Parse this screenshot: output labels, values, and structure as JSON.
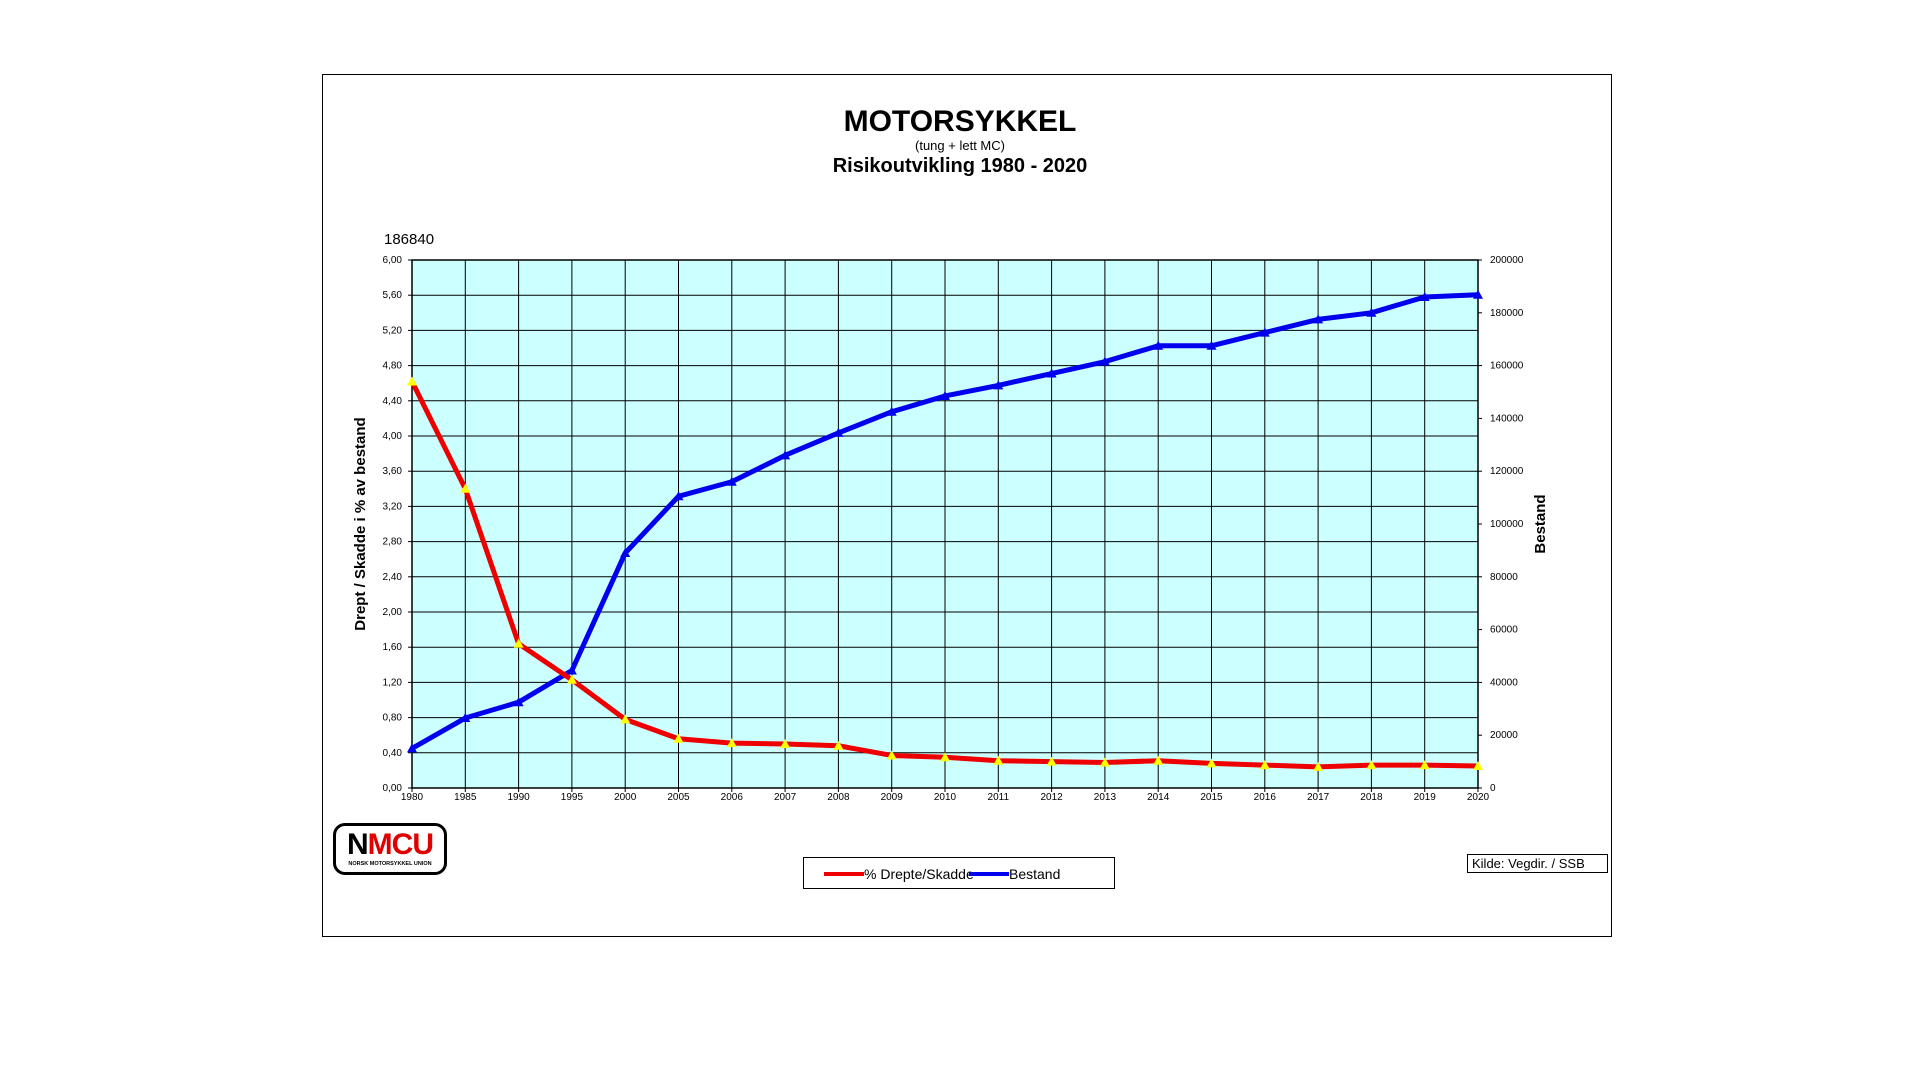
{
  "title": "MOTORSYKKEL",
  "subtitle": "(tung + lett MC)",
  "subtitle2": "Risikoutvikling 1980 - 2020",
  "logo": {
    "text_black": "N",
    "text_red": "MCU",
    "tagline": "NORSK MOTORSYKKEL UNION"
  },
  "source": "Kilde: Vegdir. / SSB",
  "colors": {
    "plot_bg": "#ccffff",
    "series1": "#ee0000",
    "series2": "#0000ee",
    "marker1": "#ffff00"
  },
  "chart_data": {
    "type": "line",
    "annotation": "186840",
    "categories": [
      "1980",
      "1985",
      "1990",
      "1995",
      "2000",
      "2005",
      "2006",
      "2007",
      "2008",
      "2009",
      "2010",
      "2011",
      "2012",
      "2013",
      "2014",
      "2015",
      "2016",
      "2017",
      "2018",
      "2019",
      "2020"
    ],
    "ylabel_left": "Drept / Skadde i % av bestand",
    "ylabel_right": "Bestand",
    "ylim_left": [
      0,
      6
    ],
    "ylim_right": [
      0,
      200000
    ],
    "yticks_left": [
      "0,00",
      "0,40",
      "0,80",
      "1,20",
      "1,60",
      "2,00",
      "2,40",
      "2,80",
      "3,20",
      "3,60",
      "4,00",
      "4,40",
      "4,80",
      "5,20",
      "5,60",
      "6,00"
    ],
    "yticks_right": [
      "0",
      "20000",
      "40000",
      "60000",
      "80000",
      "100000",
      "120000",
      "140000",
      "160000",
      "180000",
      "200000"
    ],
    "grid": true,
    "legend_position": "bottom",
    "series": [
      {
        "name": "% Drepte/Skadde",
        "axis": "left",
        "values": [
          4.62,
          3.4,
          1.64,
          1.23,
          0.78,
          0.56,
          0.51,
          0.5,
          0.48,
          0.37,
          0.35,
          0.31,
          0.3,
          0.29,
          0.31,
          0.28,
          0.26,
          0.24,
          0.26,
          0.26,
          0.25
        ]
      },
      {
        "name": "Bestand",
        "axis": "right",
        "values": [
          15000,
          26500,
          32500,
          44500,
          89000,
          110500,
          116000,
          126000,
          134500,
          142500,
          148500,
          152500,
          157000,
          161500,
          167500,
          167500,
          172500,
          177500,
          180000,
          186000,
          186840
        ]
      }
    ]
  }
}
